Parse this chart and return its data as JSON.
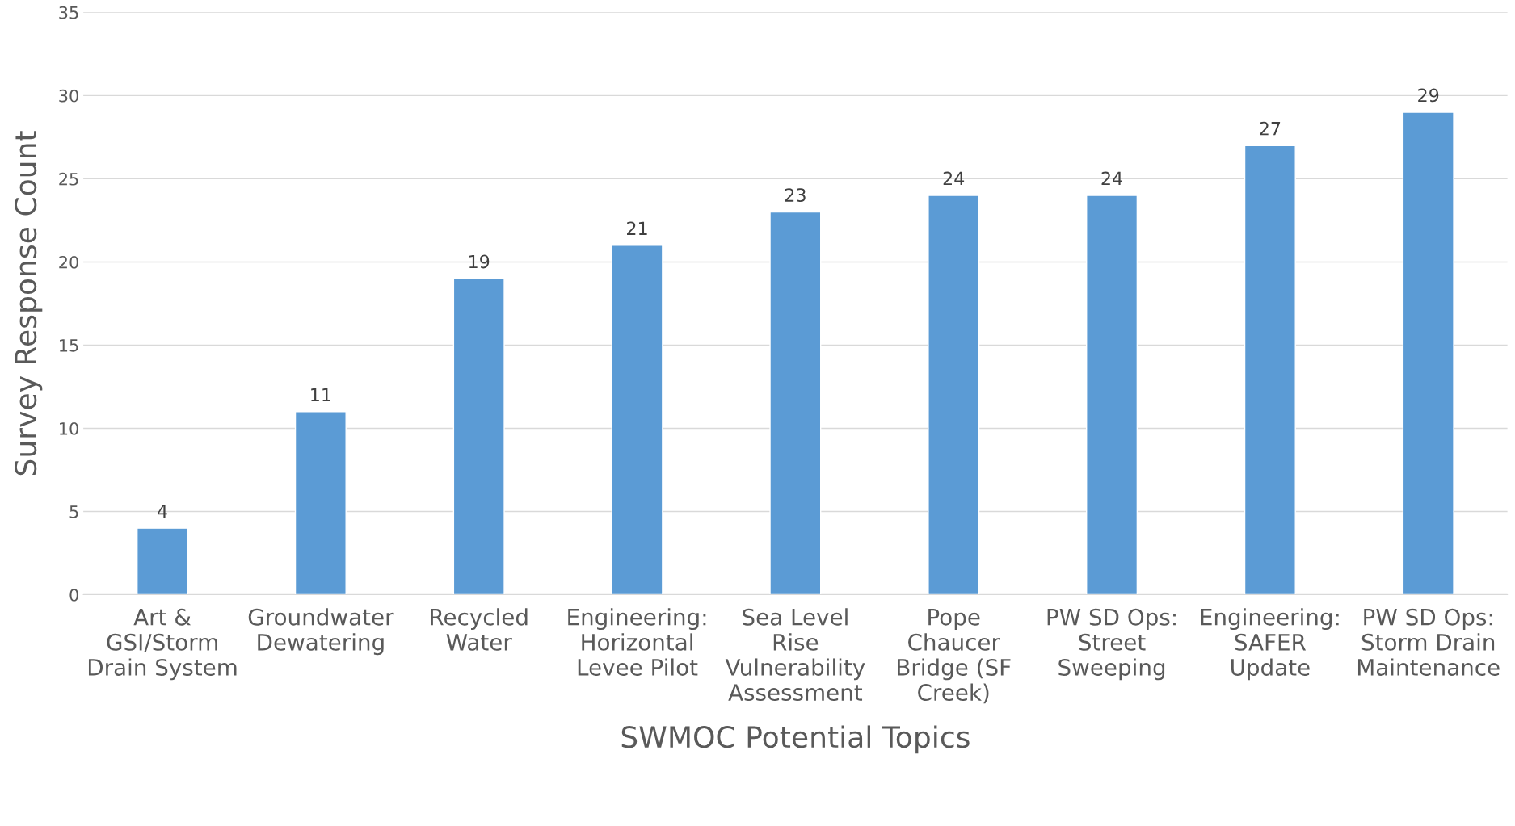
{
  "chart_data": {
    "type": "bar",
    "xlabel": "SWMOC Potential Topics",
    "ylabel": "Survey Response Count",
    "categories": [
      "Art &\nGSI/Storm\nDrain System",
      "Groundwater\nDewatering",
      "Recycled\nWater",
      "Engineering:\nHorizontal\nLevee Pilot",
      "Sea Level\nRise\nVulnerability\nAssessment",
      "Pope\nChaucer\nBridge (SF\nCreek)",
      "PW SD Ops:\nStreet\nSweeping",
      "Engineering:\nSAFER\nUpdate",
      "PW SD Ops:\nStorm Drain\nMaintenance"
    ],
    "values": [
      4,
      11,
      19,
      21,
      23,
      24,
      24,
      27,
      29
    ],
    "color": "#5b9bd5",
    "ylim": [
      0,
      35
    ],
    "yticks": [
      0,
      5,
      10,
      15,
      20,
      25,
      30,
      35
    ],
    "grid": "y",
    "data_labels": true,
    "legend": false
  }
}
